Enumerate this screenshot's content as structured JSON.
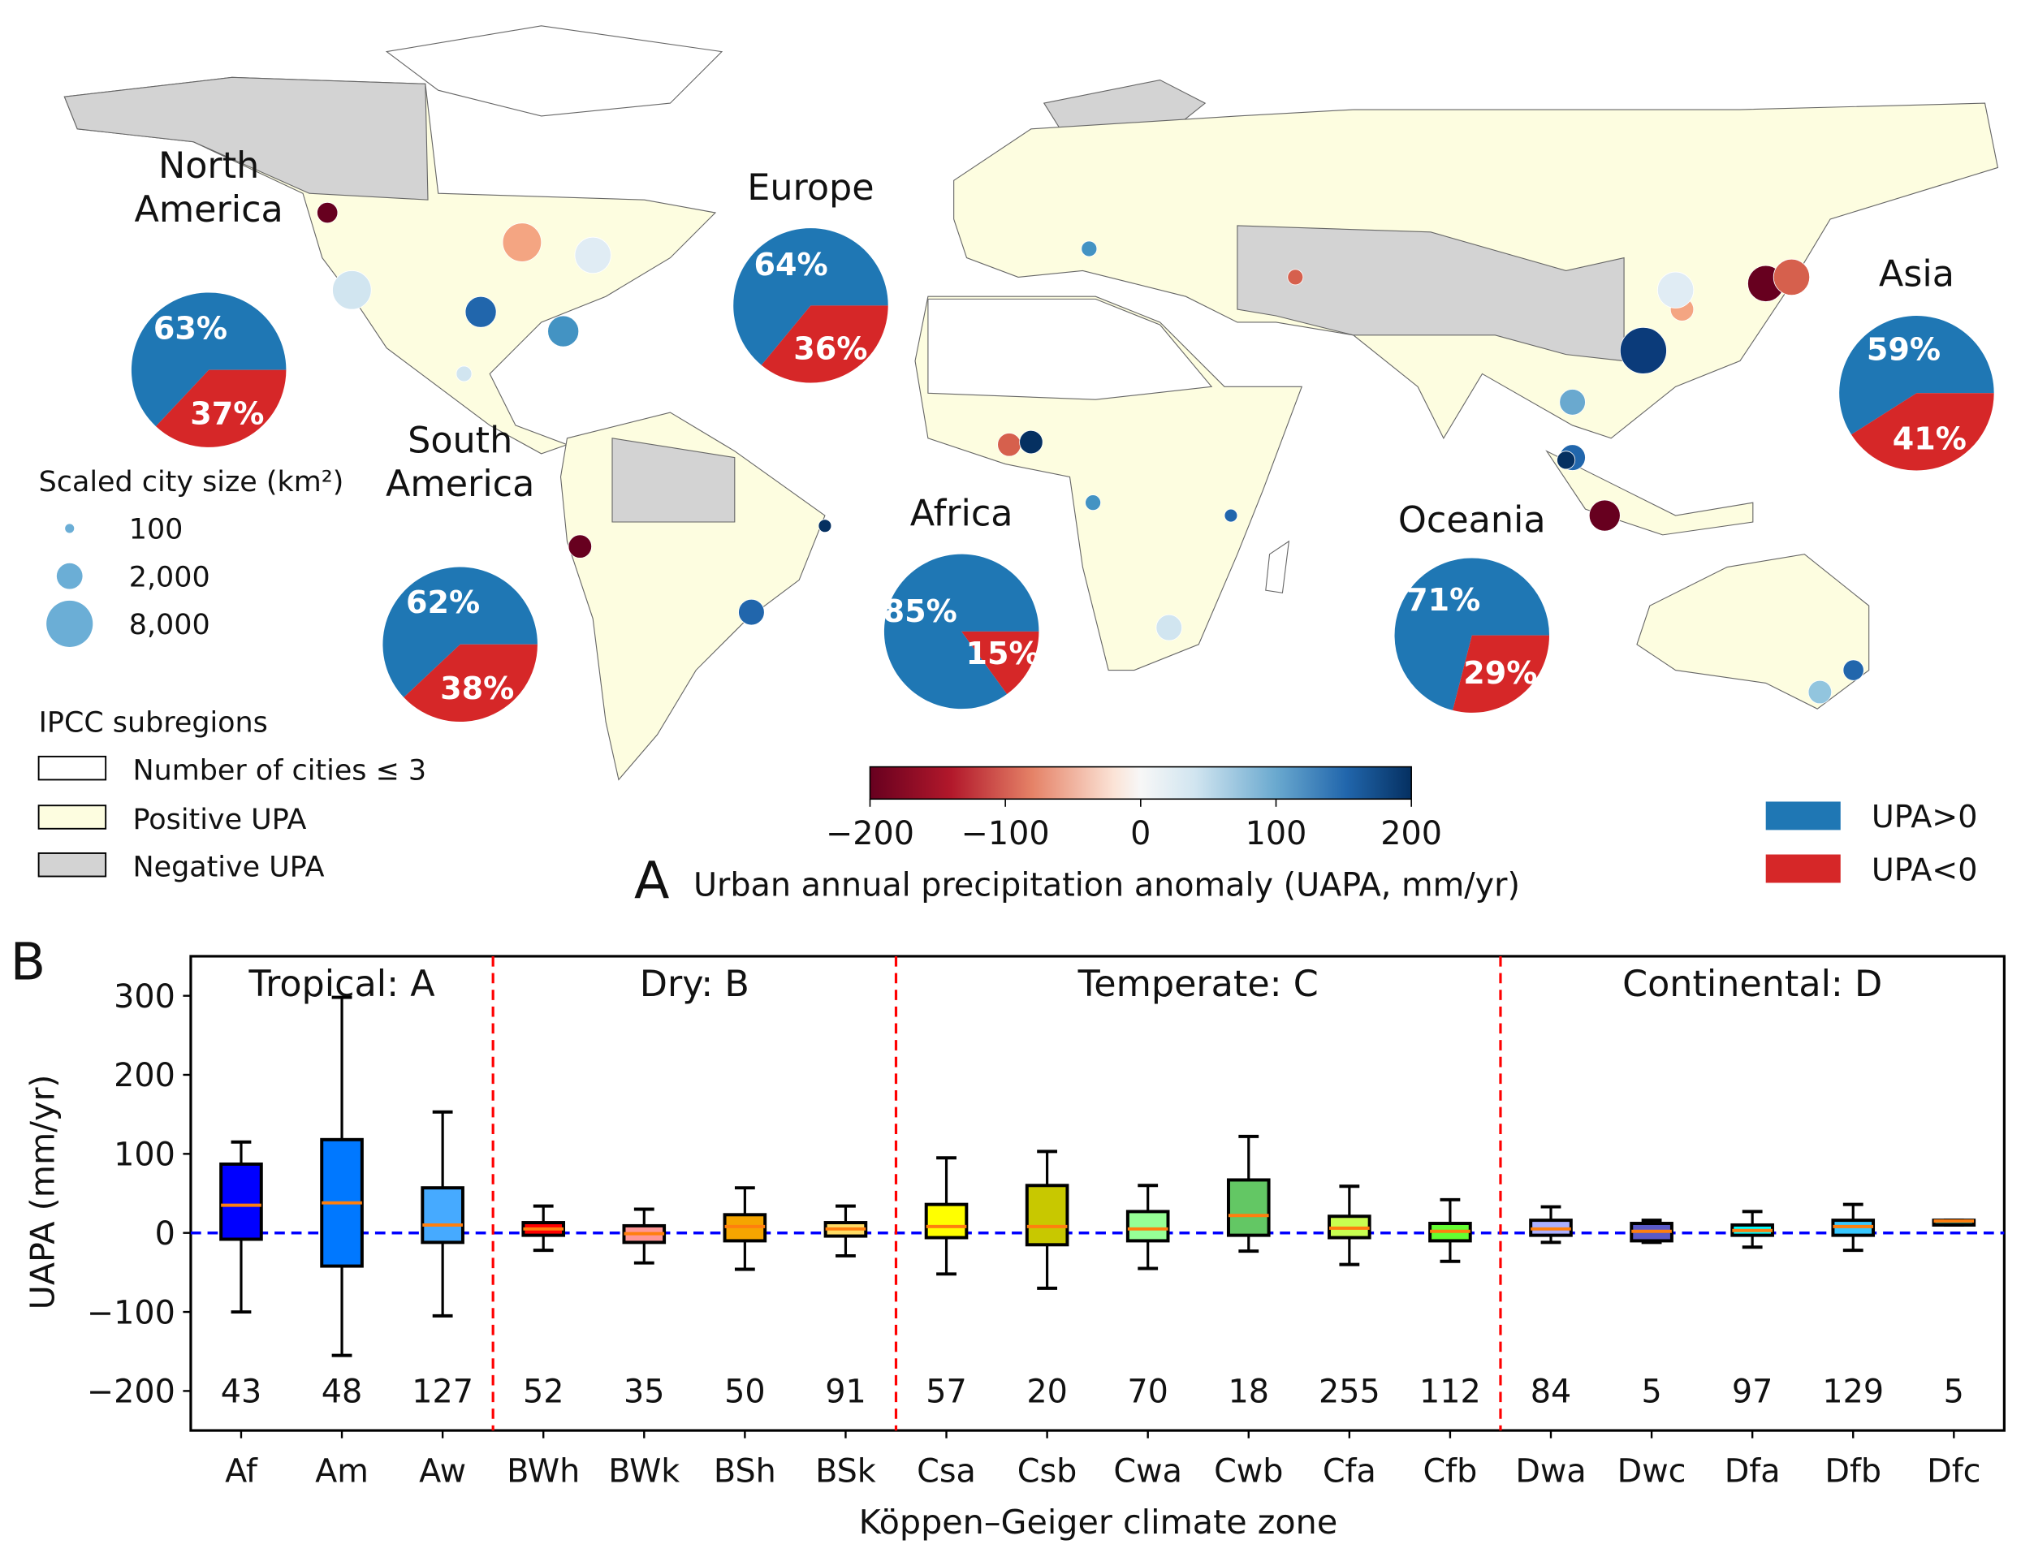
{
  "panel_a": {
    "label": "A",
    "colorbar_label": "Urban annual precipitation anomaly (UAPA, mm/yr)",
    "colorbar_ticks": [
      "−200",
      "−100",
      "0",
      "100",
      "200"
    ],
    "colorbar_range": [
      -200,
      200
    ],
    "colormap": "RdBu",
    "size_legend": {
      "title": "Scaled city size (km²)",
      "items": [
        "100",
        "2,000",
        "8,000"
      ]
    },
    "region_legend": {
      "title": "IPCC subregions",
      "items": [
        {
          "label": "Number of cities ≤ 3",
          "color": "#ffffff"
        },
        {
          "label": "Positive UPA",
          "color": "#fdfde0"
        },
        {
          "label": "Negative UPA",
          "color": "#d3d3d3"
        }
      ]
    },
    "pie_legend": [
      {
        "label": "UPA>0",
        "color": "#1f77b4"
      },
      {
        "label": "UPA<0",
        "color": "#d62728"
      }
    ],
    "pies": [
      {
        "region": "North America",
        "line1": "North",
        "line2": "America",
        "positive": 63,
        "negative": 37,
        "pos_label": "63%",
        "neg_label": "37%"
      },
      {
        "region": "Europe",
        "line1": "Europe",
        "line2": "",
        "positive": 64,
        "negative": 36,
        "pos_label": "64%",
        "neg_label": "36%"
      },
      {
        "region": "Asia",
        "line1": "Asia",
        "line2": "",
        "positive": 59,
        "negative": 41,
        "pos_label": "59%",
        "neg_label": "41%"
      },
      {
        "region": "South America",
        "line1": "South",
        "line2": "America",
        "positive": 62,
        "negative": 38,
        "pos_label": "62%",
        "neg_label": "38%"
      },
      {
        "region": "Africa",
        "line1": "Africa",
        "line2": "",
        "positive": 85,
        "negative": 15,
        "pos_label": "85%",
        "neg_label": "15%"
      },
      {
        "region": "Oceania",
        "line1": "Oceania",
        "line2": "",
        "positive": 71,
        "negative": 29,
        "pos_label": "71%",
        "neg_label": "29%"
      }
    ]
  },
  "chart_data": {
    "type": "box",
    "panel_label": "B",
    "xlabel": "Köppen–Geiger climate zone",
    "ylabel": "UAPA (mm/yr)",
    "ylim": [
      -250,
      350
    ],
    "yticks": [
      300,
      200,
      100,
      0,
      -100,
      -200
    ],
    "ytick_labels": [
      "300",
      "200",
      "100",
      "0",
      "−100",
      "−200"
    ],
    "reference_line": 0,
    "groups": [
      {
        "label": "Tropical: A",
        "count": 3
      },
      {
        "label": "Dry: B",
        "count": 4
      },
      {
        "label": "Temperate: C",
        "count": 6
      },
      {
        "label": "Continental: D",
        "count": 5
      }
    ],
    "categories": [
      "Af",
      "Am",
      "Aw",
      "BWh",
      "BWk",
      "BSh",
      "BSk",
      "Csa",
      "Csb",
      "Cwa",
      "Cwb",
      "Cfa",
      "Cfb",
      "Dwa",
      "Dwc",
      "Dfa",
      "Dfb",
      "Dfc"
    ],
    "n": [
      "43",
      "48",
      "127",
      "52",
      "35",
      "50",
      "91",
      "57",
      "20",
      "70",
      "18",
      "255",
      "112",
      "84",
      "5",
      "97",
      "129",
      "5"
    ],
    "boxes": [
      {
        "whislo": -100,
        "q1": -8,
        "med": 35,
        "q3": 87,
        "whishi": 115,
        "color": "#0000ff"
      },
      {
        "whislo": -155,
        "q1": -42,
        "med": 38,
        "q3": 118,
        "whishi": 298,
        "color": "#0078ff"
      },
      {
        "whislo": -105,
        "q1": -12,
        "med": 10,
        "q3": 57,
        "whishi": 153,
        "color": "#46aaff"
      },
      {
        "whislo": -22,
        "q1": -3,
        "med": 5,
        "q3": 13,
        "whishi": 34,
        "color": "#ff0000"
      },
      {
        "whislo": -38,
        "q1": -12,
        "med": -1,
        "q3": 9,
        "whishi": 30,
        "color": "#ff9696"
      },
      {
        "whislo": -46,
        "q1": -10,
        "med": 8,
        "q3": 23,
        "whishi": 57,
        "color": "#f5a500"
      },
      {
        "whislo": -29,
        "q1": -4,
        "med": 5,
        "q3": 13,
        "whishi": 34,
        "color": "#ffdc64"
      },
      {
        "whislo": -52,
        "q1": -6,
        "med": 8,
        "q3": 36,
        "whishi": 95,
        "color": "#ffff00"
      },
      {
        "whislo": -70,
        "q1": -15,
        "med": 8,
        "q3": 60,
        "whishi": 103,
        "color": "#c8c800"
      },
      {
        "whislo": -45,
        "q1": -10,
        "med": 5,
        "q3": 27,
        "whishi": 60,
        "color": "#96ff96"
      },
      {
        "whislo": -23,
        "q1": -3,
        "med": 22,
        "q3": 67,
        "whishi": 122,
        "color": "#63c764"
      },
      {
        "whislo": -40,
        "q1": -6,
        "med": 6,
        "q3": 21,
        "whishi": 59,
        "color": "#c8ff50"
      },
      {
        "whislo": -36,
        "q1": -10,
        "med": 2,
        "q3": 12,
        "whishi": 42,
        "color": "#64ff32"
      },
      {
        "whislo": -12,
        "q1": -3,
        "med": 5,
        "q3": 16,
        "whishi": 33,
        "color": "#aaafff"
      },
      {
        "whislo": -12,
        "q1": -10,
        "med": 2,
        "q3": 12,
        "whishi": 16,
        "color": "#5a5ac8"
      },
      {
        "whislo": -18,
        "q1": -3,
        "med": 3,
        "q3": 10,
        "whishi": 27,
        "color": "#00ffff"
      },
      {
        "whislo": -22,
        "q1": -3,
        "med": 8,
        "q3": 16,
        "whishi": 36,
        "color": "#37c8ff"
      },
      {
        "whislo": 10,
        "q1": 10,
        "med": 15,
        "q3": 16,
        "whishi": 16,
        "color": "#007d7d"
      }
    ],
    "median_color": "#ff7f0e",
    "divider_color": "#ff0000",
    "zero_line_color": "#0000ff"
  }
}
